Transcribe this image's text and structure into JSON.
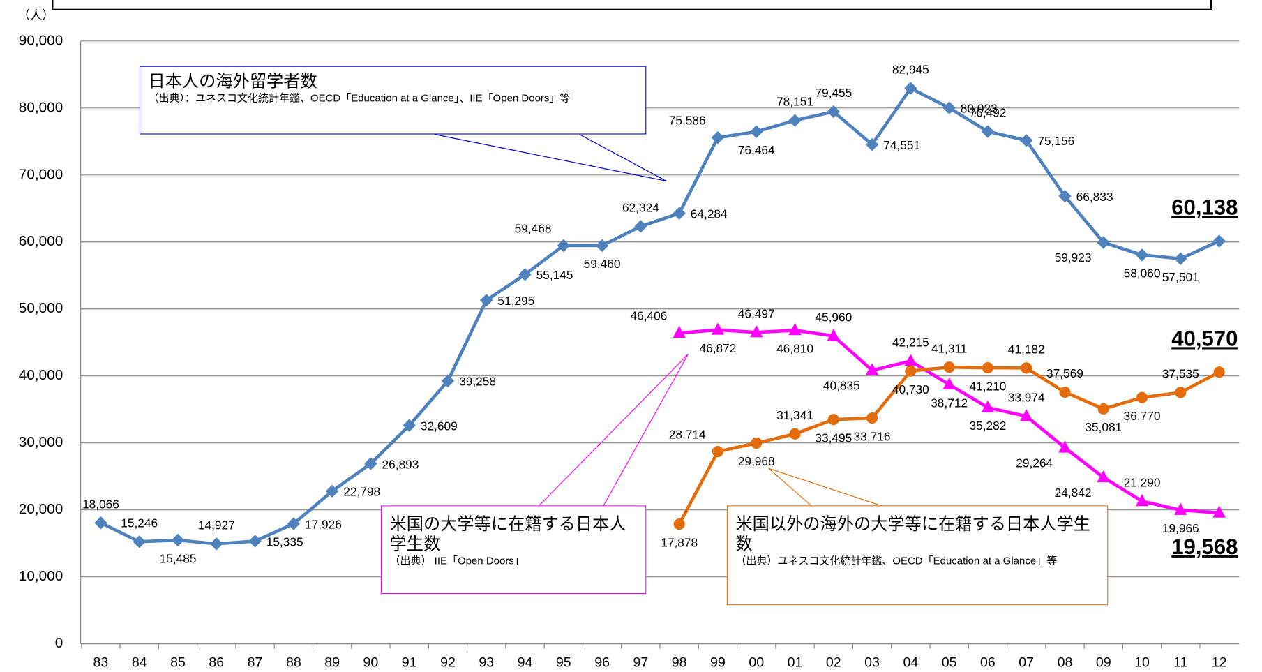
{
  "chart_data": {
    "type": "line",
    "y_unit": "（人）",
    "categories": [
      "83",
      "84",
      "85",
      "86",
      "87",
      "88",
      "89",
      "90",
      "91",
      "92",
      "93",
      "94",
      "95",
      "96",
      "97",
      "98",
      "99",
      "00",
      "01",
      "02",
      "03",
      "04",
      "05",
      "06",
      "07",
      "08",
      "09",
      "10",
      "11",
      "12"
    ],
    "ylim": [
      0,
      90000
    ],
    "yticks": [
      0,
      {
        "value": 10000,
        "label": "10,000"
      },
      {
        "value": 20000,
        "label": "20,000"
      },
      {
        "value": 30000,
        "label": "30,000"
      },
      {
        "value": 40000,
        "label": "40,000"
      },
      {
        "value": 50000,
        "label": "50,000"
      },
      {
        "value": 60000,
        "label": "60,000"
      },
      {
        "value": 70000,
        "label": "70,000"
      },
      {
        "value": 80000,
        "label": "80,000"
      },
      {
        "value": 90000,
        "label": "90,000"
      }
    ],
    "grid": true,
    "series": [
      {
        "name": "日本人の海外留学者数",
        "color": "#4f81bd",
        "marker": "diamond",
        "values": [
          18066,
          15246,
          15485,
          14927,
          15335,
          17926,
          22798,
          26893,
          32609,
          39258,
          51295,
          55145,
          59468,
          59460,
          62324,
          64284,
          75586,
          76464,
          78151,
          79455,
          74551,
          82945,
          80023,
          76492,
          75156,
          66833,
          59923,
          58060,
          57501,
          60138
        ],
        "value_labels": [
          "18,066",
          "15,246",
          "15,485",
          "14,927",
          "15,335",
          "17,926",
          "22,798",
          "26,893",
          "32,609",
          "39,258",
          "51,295",
          "55,145",
          "59,468",
          "59,460",
          "62,324",
          "64,284",
          "75,586",
          "76,464",
          "78,151",
          "79,455",
          "74,551",
          "82,945",
          "80,023",
          "76,492",
          "75,156",
          "66,833",
          "59,923",
          "58,060",
          "57,501",
          "60,138"
        ]
      },
      {
        "name": "米国の大学等に在籍する日本人学生数",
        "color": "#ff00ff",
        "marker": "triangle",
        "values": [
          null,
          null,
          null,
          null,
          null,
          null,
          null,
          null,
          null,
          null,
          null,
          null,
          null,
          null,
          null,
          46406,
          46872,
          46497,
          46810,
          45960,
          40835,
          42215,
          38712,
          35282,
          33974,
          29264,
          24842,
          21290,
          19966,
          19568
        ],
        "value_labels": [
          null,
          null,
          null,
          null,
          null,
          null,
          null,
          null,
          null,
          null,
          null,
          null,
          null,
          null,
          null,
          "46,406",
          "46,872",
          "46,497",
          "46,810",
          "45,960",
          "40,835",
          "42,215",
          "38,712",
          "35,282",
          "33,974",
          "29,264",
          "24,842",
          "21,290",
          "19,966",
          "19,568"
        ]
      },
      {
        "name": "米国以外の海外の大学等に在籍する日本人学生数",
        "color": "#e46c0a",
        "marker": "circle",
        "values": [
          null,
          null,
          null,
          null,
          null,
          null,
          null,
          null,
          null,
          null,
          null,
          null,
          null,
          null,
          null,
          17878,
          28714,
          29968,
          31341,
          33495,
          33716,
          40730,
          41311,
          41210,
          41182,
          37569,
          35081,
          36770,
          37535,
          40570
        ],
        "value_labels": [
          null,
          null,
          null,
          null,
          null,
          null,
          null,
          null,
          null,
          null,
          null,
          null,
          null,
          null,
          null,
          "17,878",
          "28,714",
          "29,968",
          "31,341",
          "33,495",
          "33,716",
          "40,730",
          "41,311",
          "41,210",
          "41,182",
          "37,569",
          "35,081",
          "36,770",
          "37,535",
          "40,570"
        ]
      }
    ],
    "annotations": [
      {
        "title": "日本人の海外留学者数",
        "source": "（出典）：ユネスコ文化統計年鑑、OECD「Education at a Glance」、IIE「Open Doors」等"
      },
      {
        "title": "米国の大学等に在籍する日本人学生数",
        "source": "（出典） IIE「Open Doors」"
      },
      {
        "title": "米国以外の海外の大学等に在籍する日本人学生数",
        "source": "（出典）ユネスコ文化統計年鑑、OECD「Education at a Glance」等"
      }
    ]
  }
}
